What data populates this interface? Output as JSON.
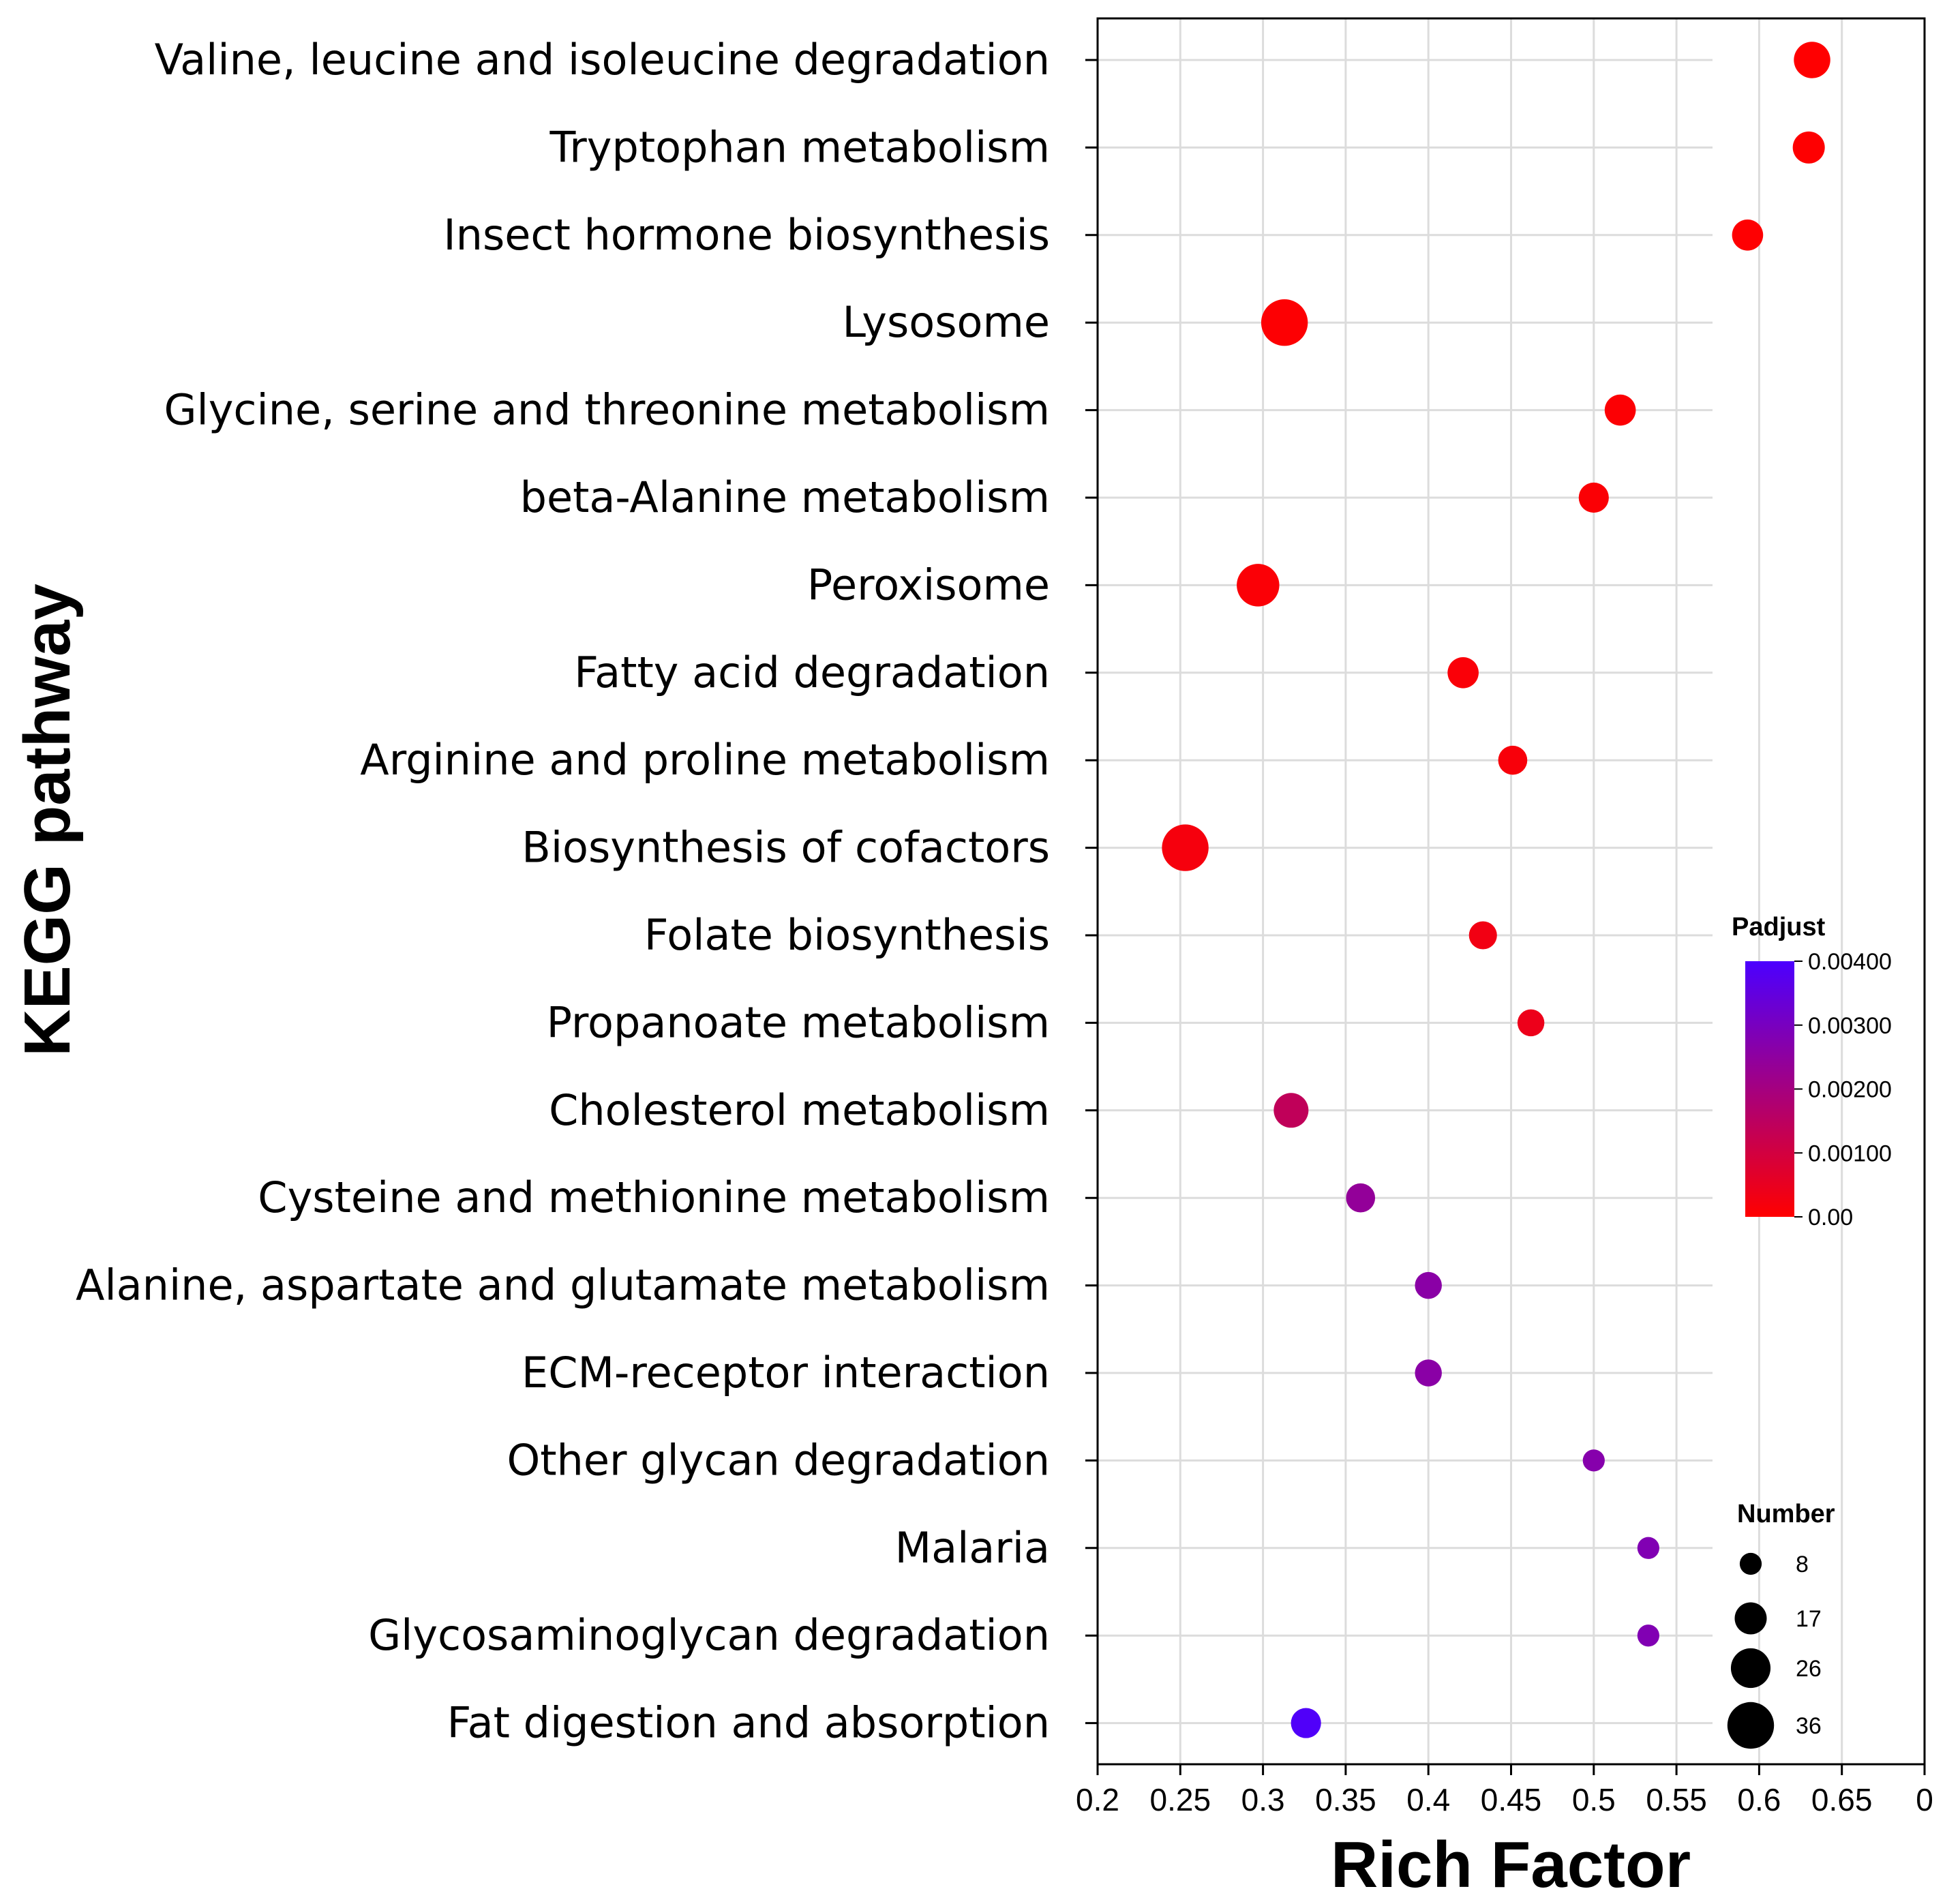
{
  "chart_data": {
    "type": "scatter",
    "subtype": "bubble",
    "xlabel": "Rich Factor",
    "ylabel": "KEGG pathway",
    "xlim": [
      0.2,
      0.7
    ],
    "xticks": [
      "0.2",
      "0.25",
      "0.3",
      "0.35",
      "0.4",
      "0.45",
      "0.5",
      "0.55",
      "0.6",
      "0.65",
      "0"
    ],
    "points": [
      {
        "pathway": "Valine, leucine and isoleucine degradation",
        "rich_factor": 0.632,
        "number": 22,
        "padjust": 1e-05
      },
      {
        "pathway": "Tryptophan metabolism",
        "rich_factor": 0.63,
        "number": 17,
        "padjust": 2e-05
      },
      {
        "pathway": "Insect hormone biosynthesis",
        "rich_factor": 0.593,
        "number": 16,
        "padjust": 3e-05
      },
      {
        "pathway": "Lysosome",
        "rich_factor": 0.313,
        "number": 36,
        "padjust": 4e-05
      },
      {
        "pathway": "Glycine, serine and threonine metabolism",
        "rich_factor": 0.516,
        "number": 16,
        "padjust": 6e-05
      },
      {
        "pathway": "beta-Alanine metabolism",
        "rich_factor": 0.5,
        "number": 15,
        "padjust": 8e-05
      },
      {
        "pathway": "Peroxisome",
        "rich_factor": 0.297,
        "number": 30,
        "padjust": 0.0001
      },
      {
        "pathway": "Fatty acid degradation",
        "rich_factor": 0.421,
        "number": 16,
        "padjust": 0.00012
      },
      {
        "pathway": "Arginine and proline metabolism",
        "rich_factor": 0.451,
        "number": 14,
        "padjust": 0.00016
      },
      {
        "pathway": "Biosynthesis of cofactors",
        "rich_factor": 0.253,
        "number": 36,
        "padjust": 0.0002
      },
      {
        "pathway": "Folate biosynthesis",
        "rich_factor": 0.433,
        "number": 13,
        "padjust": 0.0003
      },
      {
        "pathway": "Propanoate metabolism",
        "rich_factor": 0.462,
        "number": 12,
        "padjust": 0.0004
      },
      {
        "pathway": "Cholesterol metabolism",
        "rich_factor": 0.317,
        "number": 20,
        "padjust": 0.0014
      },
      {
        "pathway": "Cysteine and methionine metabolism",
        "rich_factor": 0.359,
        "number": 14,
        "padjust": 0.0024
      },
      {
        "pathway": "Alanine, aspartate and glutamate metabolism",
        "rich_factor": 0.4,
        "number": 12,
        "padjust": 0.0026
      },
      {
        "pathway": "ECM-receptor interaction",
        "rich_factor": 0.4,
        "number": 12,
        "padjust": 0.0026
      },
      {
        "pathway": "Other glycan degradation",
        "rich_factor": 0.5,
        "number": 8,
        "padjust": 0.0027
      },
      {
        "pathway": "Malaria",
        "rich_factor": 0.533,
        "number": 8,
        "padjust": 0.0028
      },
      {
        "pathway": "Glycosaminoglycan degradation",
        "rich_factor": 0.533,
        "number": 8,
        "padjust": 0.0028
      },
      {
        "pathway": "Fat digestion and absorption",
        "rich_factor": 0.326,
        "number": 15,
        "padjust": 0.0039
      }
    ],
    "color_legend": {
      "title": "Padjust",
      "min": 0.0,
      "max": 0.004,
      "low_color": "#ff0000",
      "high_color": "#4b00ff",
      "ticks": [
        {
          "value": 0.004,
          "label": "0.00400"
        },
        {
          "value": 0.003,
          "label": "0.00300"
        },
        {
          "value": 0.002,
          "label": "0.00200"
        },
        {
          "value": 0.001,
          "label": "0.00100"
        },
        {
          "value": 0.0,
          "label": "0.00"
        }
      ]
    },
    "size_legend": {
      "title": "Number",
      "entries": [
        {
          "value": 8,
          "label": "8"
        },
        {
          "value": 17,
          "label": "17"
        },
        {
          "value": 26,
          "label": "26"
        },
        {
          "value": 36,
          "label": "36"
        }
      ]
    },
    "grid": true
  }
}
